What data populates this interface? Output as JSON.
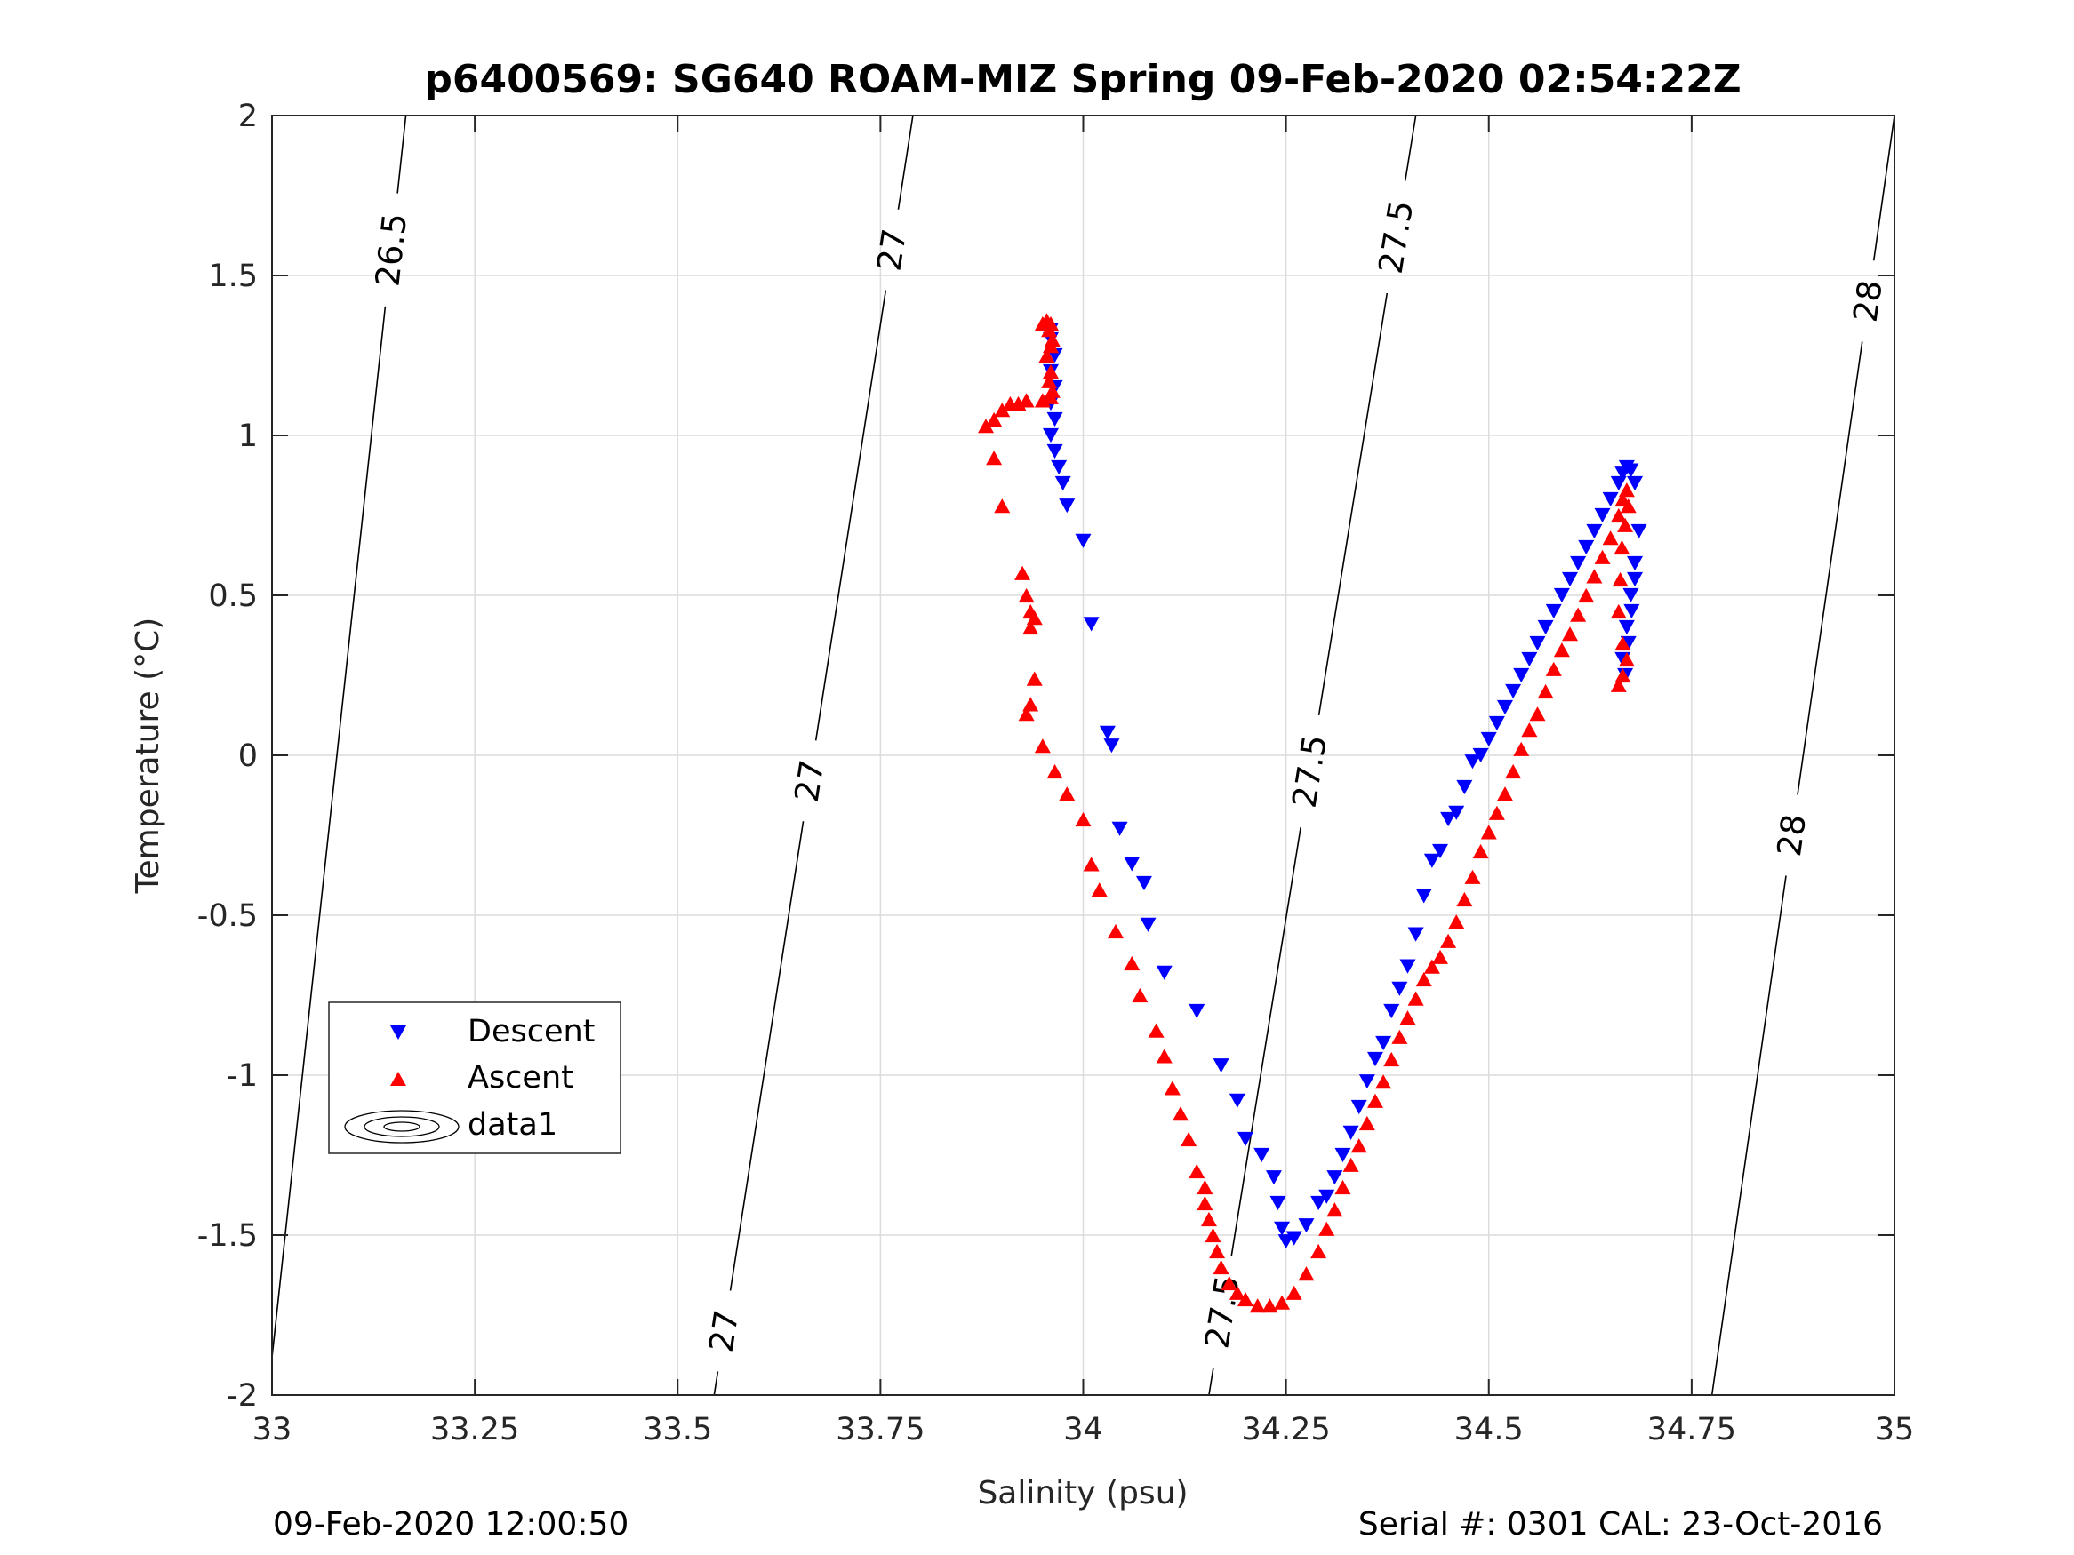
{
  "chart_data": {
    "type": "scatter",
    "title": "p6400569: SG640 ROAM-MIZ Spring 09-Feb-2020 02:54:22Z",
    "xlabel": "Salinity (psu)",
    "ylabel": "Temperature (°C)",
    "xlim": [
      33,
      35
    ],
    "ylim": [
      -2,
      2
    ],
    "xticks": [
      "33",
      "33.25",
      "33.5",
      "33.75",
      "34",
      "34.25",
      "34.5",
      "34.75",
      "35"
    ],
    "yticks": [
      "-2",
      "-1.5",
      "-1",
      "-0.5",
      "0",
      "0.5",
      "1",
      "1.5",
      "2"
    ],
    "grid": true,
    "legend_position": "lower-left",
    "legend": [
      "Descent",
      "Ascent",
      "data1"
    ],
    "colors": {
      "descent": "#0000ff",
      "ascent": "#ff0000",
      "contour": "#000000",
      "grid": "#dcdcdc"
    },
    "series": [
      {
        "name": "Descent",
        "marker": "triangle-down",
        "x": [
          33.96,
          33.96,
          33.965,
          33.96,
          33.965,
          33.96,
          33.965,
          33.96,
          33.965,
          33.97,
          33.975,
          33.98,
          34.0,
          34.01,
          34.03,
          34.035,
          34.045,
          34.06,
          34.075,
          34.08,
          34.1,
          34.14,
          34.17,
          34.19,
          34.2,
          34.22,
          34.235,
          34.24,
          34.245,
          34.25,
          34.26,
          34.275,
          34.29,
          34.3,
          34.31,
          34.32,
          34.33,
          34.34,
          34.35,
          34.36,
          34.37,
          34.38,
          34.39,
          34.4,
          34.41,
          34.42,
          34.43,
          34.44,
          34.45,
          34.46,
          34.47,
          34.48,
          34.49,
          34.5,
          34.51,
          34.52,
          34.53,
          34.54,
          34.55,
          34.56,
          34.57,
          34.58,
          34.59,
          34.6,
          34.61,
          34.62,
          34.63,
          34.64,
          34.65,
          34.66,
          34.665,
          34.67,
          34.675,
          34.68,
          34.685,
          34.68,
          34.675,
          34.67,
          34.665,
          34.668,
          34.672,
          34.676,
          34.68
        ],
        "y": [
          1.33,
          1.3,
          1.25,
          1.2,
          1.15,
          1.1,
          1.05,
          1.0,
          0.95,
          0.9,
          0.85,
          0.78,
          0.67,
          0.41,
          0.07,
          0.03,
          -0.23,
          -0.34,
          -0.4,
          -0.53,
          -0.68,
          -0.8,
          -0.97,
          -1.08,
          -1.2,
          -1.25,
          -1.32,
          -1.4,
          -1.48,
          -1.52,
          -1.51,
          -1.47,
          -1.4,
          -1.38,
          -1.32,
          -1.25,
          -1.18,
          -1.1,
          -1.02,
          -0.95,
          -0.9,
          -0.8,
          -0.73,
          -0.66,
          -0.56,
          -0.44,
          -0.33,
          -0.3,
          -0.2,
          -0.18,
          -0.1,
          -0.02,
          0.0,
          0.05,
          0.1,
          0.15,
          0.2,
          0.25,
          0.3,
          0.35,
          0.4,
          0.45,
          0.5,
          0.55,
          0.6,
          0.65,
          0.7,
          0.75,
          0.8,
          0.85,
          0.88,
          0.9,
          0.89,
          0.85,
          0.7,
          0.6,
          0.5,
          0.4,
          0.3,
          0.25,
          0.35,
          0.45,
          0.55
        ]
      },
      {
        "name": "Ascent",
        "marker": "triangle-up",
        "x": [
          33.95,
          33.955,
          33.96,
          33.958,
          33.962,
          33.96,
          33.955,
          33.96,
          33.958,
          33.962,
          33.96,
          33.95,
          33.93,
          33.92,
          33.91,
          33.9,
          33.89,
          33.88,
          33.89,
          33.9,
          33.925,
          33.93,
          33.935,
          33.94,
          33.935,
          33.94,
          33.935,
          33.93,
          33.95,
          33.965,
          33.98,
          34.0,
          34.01,
          34.02,
          34.04,
          34.06,
          34.07,
          34.09,
          34.1,
          34.11,
          34.12,
          34.13,
          34.14,
          34.15,
          34.15,
          34.155,
          34.16,
          34.165,
          34.17,
          34.18,
          34.19,
          34.2,
          34.215,
          34.23,
          34.245,
          34.26,
          34.275,
          34.29,
          34.3,
          34.31,
          34.32,
          34.33,
          34.34,
          34.35,
          34.36,
          34.37,
          34.38,
          34.39,
          34.4,
          34.41,
          34.42,
          34.43,
          34.44,
          34.45,
          34.46,
          34.47,
          34.48,
          34.49,
          34.5,
          34.51,
          34.52,
          34.53,
          34.54,
          34.55,
          34.56,
          34.57,
          34.58,
          34.59,
          34.6,
          34.61,
          34.62,
          34.63,
          34.64,
          34.65,
          34.66,
          34.665,
          34.67,
          34.672,
          34.668,
          34.664,
          34.662,
          34.66,
          34.665,
          34.67,
          34.665,
          34.66
        ],
        "y": [
          1.35,
          1.36,
          1.35,
          1.33,
          1.3,
          1.28,
          1.25,
          1.2,
          1.17,
          1.14,
          1.12,
          1.11,
          1.11,
          1.1,
          1.1,
          1.08,
          1.05,
          1.03,
          0.93,
          0.78,
          0.57,
          0.5,
          0.45,
          0.43,
          0.4,
          0.24,
          0.16,
          0.13,
          0.03,
          -0.05,
          -0.12,
          -0.2,
          -0.34,
          -0.42,
          -0.55,
          -0.65,
          -0.75,
          -0.86,
          -0.94,
          -1.04,
          -1.12,
          -1.2,
          -1.3,
          -1.35,
          -1.4,
          -1.45,
          -1.5,
          -1.55,
          -1.6,
          -1.65,
          -1.68,
          -1.7,
          -1.72,
          -1.72,
          -1.71,
          -1.68,
          -1.62,
          -1.55,
          -1.48,
          -1.42,
          -1.35,
          -1.28,
          -1.22,
          -1.15,
          -1.08,
          -1.02,
          -0.95,
          -0.88,
          -0.82,
          -0.76,
          -0.7,
          -0.66,
          -0.63,
          -0.58,
          -0.52,
          -0.45,
          -0.38,
          -0.3,
          -0.24,
          -0.18,
          -0.12,
          -0.05,
          0.02,
          0.08,
          0.13,
          0.2,
          0.27,
          0.33,
          0.38,
          0.44,
          0.5,
          0.56,
          0.62,
          0.68,
          0.75,
          0.8,
          0.83,
          0.78,
          0.72,
          0.65,
          0.55,
          0.45,
          0.35,
          0.3,
          0.25,
          0.22
        ]
      }
    ],
    "contours": [
      {
        "level": "26.5",
        "x_at_ylow": 32.995,
        "x_at_yhigh": 33.165,
        "labels": [
          {
            "text": "26.5",
            "y": 1.58
          }
        ]
      },
      {
        "level": "27",
        "x_at_ylow": 33.545,
        "x_at_yhigh": 33.79,
        "labels": [
          {
            "text": "27",
            "y": -1.8
          },
          {
            "text": "27",
            "y": -0.08
          },
          {
            "text": "27",
            "y": 1.58
          }
        ]
      },
      {
        "level": "27.5",
        "x_at_ylow": 34.155,
        "x_at_yhigh": 34.41,
        "labels": [
          {
            "text": "27.5",
            "y": -1.74
          },
          {
            "text": "27.5",
            "y": -0.05
          },
          {
            "text": "27.5",
            "y": 1.62
          }
        ]
      },
      {
        "level": "28",
        "x_at_ylow": 34.775,
        "x_at_yhigh": 35.0,
        "labels": [
          {
            "text": "28",
            "y": -0.25
          },
          {
            "text": "28",
            "y": 1.42
          }
        ]
      }
    ]
  },
  "footer": {
    "left": "09-Feb-2020 12:00:50",
    "right": "Serial #: 0301  CAL: 23-Oct-2016"
  }
}
